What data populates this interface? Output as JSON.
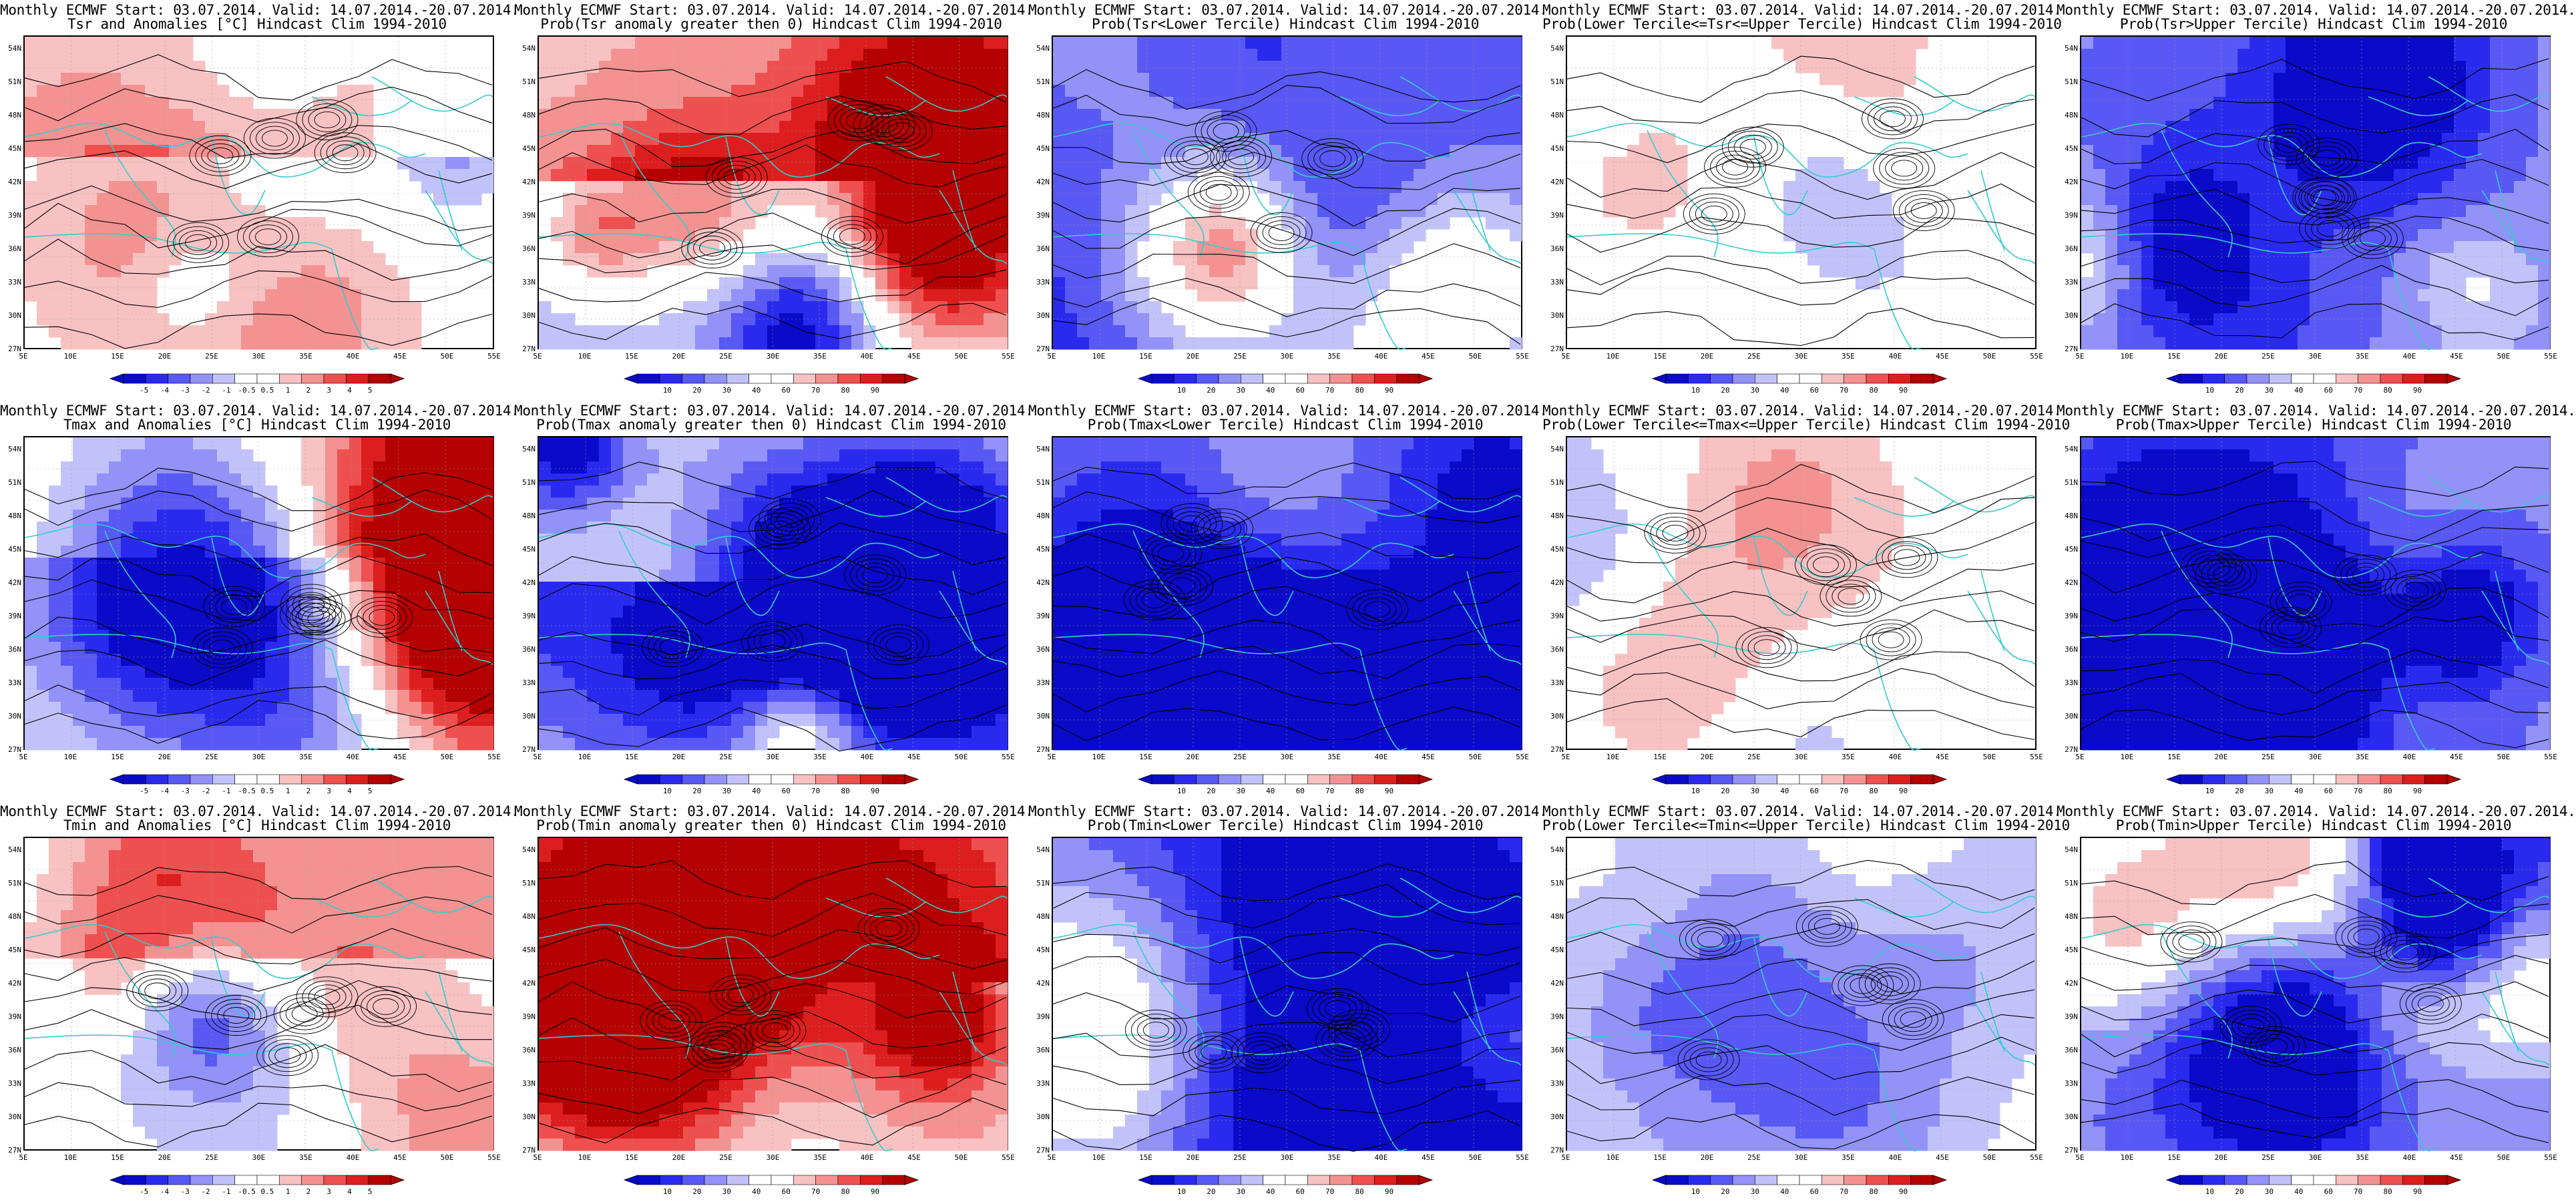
{
  "grid": {
    "lat_labels": [
      "54N",
      "51N",
      "48N",
      "45N",
      "42N",
      "39N",
      "36N",
      "33N",
      "30N",
      "27N"
    ],
    "lon_labels": [
      "5E",
      "10E",
      "15E",
      "20E",
      "25E",
      "30E",
      "35E",
      "40E",
      "45E",
      "50E",
      "55E"
    ]
  },
  "colors": {
    "sea_contour": "#33cccc",
    "contour": "#000000",
    "scale": [
      "#0a0ac8",
      "#2a2aee",
      "#5858f4",
      "#9292f8",
      "#c2c2fb",
      "#ffffff",
      "#ffffff",
      "#f8c2c2",
      "#f49292",
      "#ee5050",
      "#dc1e1e",
      "#b40000"
    ]
  },
  "colorbars": {
    "anomaly": [
      "-5",
      "-4",
      "-3",
      "-2",
      "-1",
      "-0.5",
      "0.5",
      "1",
      "2",
      "3",
      "4",
      "5"
    ],
    "probability": [
      "10",
      "20",
      "30",
      "40",
      "60",
      "70",
      "80",
      "90"
    ]
  },
  "panels": [
    {
      "title1": "Monthly ECMWF Start: 03.07.2014. Valid: 14.07.2014.-20.07.2014.",
      "title2": "Tsr and Anomalies [°C] Hindcast Clim 1994-2010",
      "scale": "anomaly",
      "style": "anomaly",
      "seed": 11
    },
    {
      "title1": "Monthly ECMWF Start: 03.07.2014. Valid: 14.07.2014.-20.07.2014.",
      "title2": "Prob(Tsr anomaly greater then 0) Hindcast Clim 1994-2010",
      "scale": "probability",
      "style": "prob_pos",
      "seed": 23
    },
    {
      "title1": "Monthly ECMWF Start: 03.07.2014. Valid: 14.07.2014.-20.07.2014.",
      "title2": "Prob(Tsr<Lower Tercile) Hindcast Clim 1994-2010",
      "scale": "probability",
      "style": "prob_lower",
      "seed": 37
    },
    {
      "title1": "Monthly ECMWF Start: 03.07.2014. Valid: 14.07.2014.-20.07.2014.",
      "title2": "Prob(Lower Tercile<=Tsr<=Upper Tercile) Hindcast Clim 1994-2010",
      "scale": "probability",
      "style": "prob_middle",
      "seed": 41
    },
    {
      "title1": "Monthly ECMWF Start: 03.07.2014. Valid: 14.07.2014.-20.07.2014.",
      "title2": "Prob(Tsr>Upper Tercile) Hindcast Clim 1994-2010",
      "scale": "probability",
      "style": "prob_upper",
      "seed": 53
    },
    {
      "title1": "Monthly ECMWF Start: 03.07.2014. Valid: 14.07.2014.-20.07.2014.",
      "title2": "Tmax and Anomalies [°C] Hindcast Clim 1994-2010",
      "scale": "anomaly",
      "style": "anomaly",
      "seed": 61
    },
    {
      "title1": "Monthly ECMWF Start: 03.07.2014. Valid: 14.07.2014.-20.07.2014.",
      "title2": "Prob(Tmax anomaly greater then 0) Hindcast Clim 1994-2010",
      "scale": "probability",
      "style": "prob_pos",
      "seed": 71
    },
    {
      "title1": "Monthly ECMWF Start: 03.07.2014. Valid: 14.07.2014.-20.07.2014.",
      "title2": "Prob(Tmax<Lower Tercile) Hindcast Clim 1994-2010",
      "scale": "probability",
      "style": "prob_lower",
      "seed": 83
    },
    {
      "title1": "Monthly ECMWF Start: 03.07.2014. Valid: 14.07.2014.-20.07.2014.",
      "title2": "Prob(Lower Tercile<=Tmax<=Upper Tercile) Hindcast Clim 1994-2010",
      "scale": "probability",
      "style": "prob_middle",
      "seed": 97
    },
    {
      "title1": "Monthly ECMWF Start: 03.07.2014. Valid: 14.07.2014.-20.07.2014.",
      "title2": "Prob(Tmax>Upper Tercile) Hindcast Clim 1994-2010",
      "scale": "probability",
      "style": "prob_upper",
      "seed": 101
    },
    {
      "title1": "Monthly ECMWF Start: 03.07.2014. Valid: 14.07.2014.-20.07.2014.",
      "title2": "Tmin and Anomalies [°C] Hindcast Clim 1994-2010",
      "scale": "anomaly",
      "style": "anomaly",
      "seed": 113
    },
    {
      "title1": "Monthly ECMWF Start: 03.07.2014. Valid: 14.07.2014.-20.07.2014.",
      "title2": "Prob(Tmin anomaly greater then 0) Hindcast Clim 1994-2010",
      "scale": "probability",
      "style": "prob_pos",
      "seed": 127
    },
    {
      "title1": "Monthly ECMWF Start: 03.07.2014. Valid: 14.07.2014.-20.07.2014.",
      "title2": "Prob(Tmin<Lower Tercile) Hindcast Clim 1994-2010",
      "scale": "probability",
      "style": "prob_lower",
      "seed": 131
    },
    {
      "title1": "Monthly ECMWF Start: 03.07.2014. Valid: 14.07.2014.-20.07.2014.",
      "title2": "Prob(Lower Tercile<=Tmin<=Upper Tercile) Hindcast Clim 1994-2010",
      "scale": "probability",
      "style": "prob_middle",
      "seed": 139
    },
    {
      "title1": "Monthly ECMWF Start: 03.07.2014. Valid: 14.07.2014.-20.07.2014.",
      "title2": "Prob(Tmin>Upper Tercile) Hindcast Clim 1994-2010",
      "scale": "probability",
      "style": "prob_upper",
      "seed": 149
    }
  ]
}
